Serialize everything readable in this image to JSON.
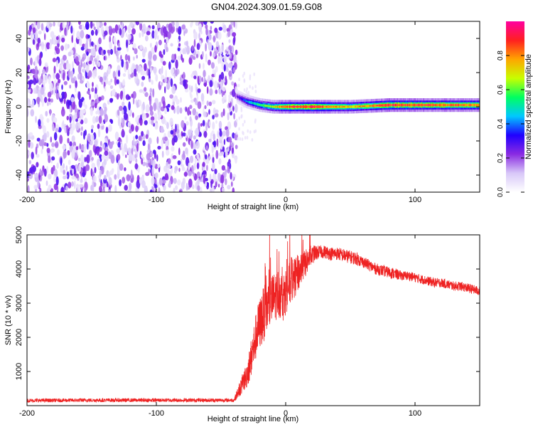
{
  "title": "GN04.2024.309.01.59.G08",
  "chart_data": [
    {
      "type": "heatmap",
      "xlabel": "Height of straight line (km)",
      "ylabel": "Frequency (Hz)",
      "xlim": [
        -200,
        150
      ],
      "ylim": [
        -50,
        50
      ],
      "x_ticks": [
        -200,
        -100,
        0,
        100
      ],
      "y_ticks": [
        -40,
        -20,
        0,
        20,
        40
      ],
      "noise_region": {
        "x": [
          -200,
          -38
        ],
        "y": [
          -50,
          50
        ],
        "amplitude": [
          0.05,
          0.3
        ]
      },
      "signal_band": {
        "x": [
          -38,
          150
        ],
        "points": [
          {
            "x": -38,
            "freq": 6,
            "amp": 0.25
          },
          {
            "x": -30,
            "freq": 3,
            "amp": 0.45
          },
          {
            "x": -20,
            "freq": 1,
            "amp": 0.6
          },
          {
            "x": -10,
            "freq": 0,
            "amp": 0.7
          },
          {
            "x": 0,
            "freq": 0,
            "amp": 0.9
          },
          {
            "x": 20,
            "freq": 0,
            "amp": 0.95
          },
          {
            "x": 50,
            "freq": 0,
            "amp": 0.75
          },
          {
            "x": 80,
            "freq": 1,
            "amp": 0.95
          },
          {
            "x": 110,
            "freq": 1,
            "amp": 0.9
          },
          {
            "x": 150,
            "freq": 1,
            "amp": 0.85
          }
        ]
      },
      "colorbar": {
        "label": "Normalized spectral amplitude",
        "range": [
          0,
          1
        ],
        "ticks": [
          "0.0",
          "0.2",
          "0.4",
          "0.6",
          "0.8"
        ],
        "colors": [
          "#ffffff",
          "#d8c8f8",
          "#8a2be2",
          "#2000ff",
          "#00c8ff",
          "#00ff60",
          "#c8ff00",
          "#ffa500",
          "#ff2020",
          "#ff00a0"
        ]
      }
    },
    {
      "type": "line",
      "xlabel": "Height of straight line (km)",
      "ylabel": "SNR (10 * v/v)",
      "xlim": [
        -200,
        150
      ],
      "ylim": [
        0,
        5000
      ],
      "x_ticks": [
        -200,
        -100,
        0,
        100
      ],
      "y_ticks": [
        1000,
        2000,
        3000,
        4000,
        5000
      ],
      "color": "#ee2222",
      "series": [
        {
          "x": [
            -200,
            -150,
            -100,
            -60,
            -40,
            -34,
            -30,
            -26,
            -22,
            -18,
            -14,
            -10,
            -6,
            -2,
            2,
            6,
            10,
            14,
            18,
            22,
            26,
            30,
            35,
            40,
            45,
            50,
            55,
            60,
            65,
            70,
            75,
            80,
            85,
            90,
            95,
            100,
            105,
            110,
            115,
            120,
            125,
            130,
            135,
            140,
            145,
            150
          ],
          "y": [
            150,
            160,
            160,
            160,
            160,
            600,
            900,
            1500,
            2200,
            2600,
            2900,
            3100,
            3300,
            3200,
            3500,
            3700,
            3900,
            4100,
            4300,
            4450,
            4500,
            4500,
            4450,
            4450,
            4400,
            4350,
            4300,
            4200,
            4100,
            4000,
            3950,
            3900,
            3850,
            3800,
            3800,
            3750,
            3700,
            3650,
            3600,
            3600,
            3550,
            3500,
            3500,
            3450,
            3400,
            3350
          ],
          "spread": [
            100,
            100,
            100,
            100,
            100,
            500,
            700,
            1100,
            1300,
            1500,
            1400,
            1400,
            1300,
            1300,
            1200,
            1100,
            1000,
            800,
            600,
            450,
            350,
            350,
            350,
            350,
            350,
            350,
            350,
            300,
            300,
            300,
            300,
            300,
            300,
            250,
            250,
            250,
            250,
            250,
            250,
            250,
            250,
            250,
            250,
            250,
            250,
            250
          ]
        }
      ]
    }
  ]
}
